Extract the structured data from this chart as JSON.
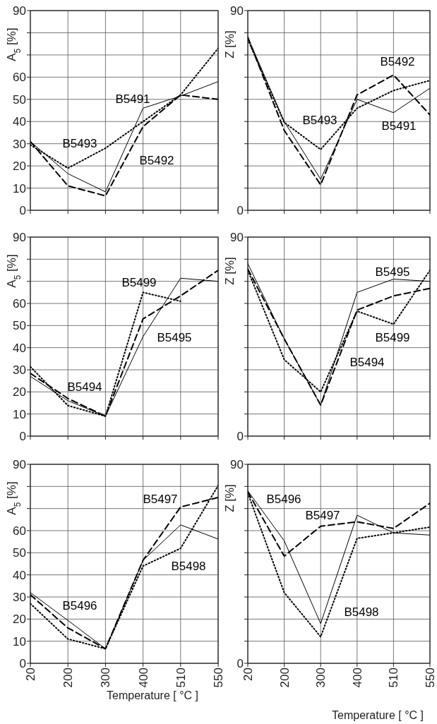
{
  "chart_data": [
    {
      "type": "line",
      "ylabel": "A$_{5}$ [%]",
      "categories": [
        null,
        null,
        null,
        null,
        null,
        null
      ],
      "ylim": [
        0,
        90
      ],
      "yticks": [
        0,
        10,
        20,
        30,
        40,
        50,
        60,
        {
          "value": 70,
          "label": null
        },
        {
          "value": 80,
          "label": null
        },
        90
      ],
      "grid": true,
      "tick_labels": "y",
      "marker": "none",
      "series": [
        {
          "name": "B5491",
          "color": "#000000",
          "line_style": "solid",
          "values": [
            31,
            16.5,
            8.3,
            46,
            51.5,
            58
          ]
        },
        {
          "name": "B5492",
          "color": "#000000",
          "line_style": "dashed",
          "values": [
            31,
            11,
            6.5,
            37.7,
            52,
            50
          ]
        },
        {
          "name": "B5493",
          "color": "#000000",
          "line_style": "dotted",
          "values": [
            29.5,
            19,
            28,
            40,
            52,
            73
          ]
        }
      ]
    },
    {
      "type": "line",
      "ylabel": "Z [%]",
      "categories": [
        null,
        null,
        null,
        null,
        null,
        null
      ],
      "ylim": [
        0,
        90
      ],
      "yticks": [
        0,
        {
          "value": 10,
          "label": null
        },
        {
          "value": 20,
          "label": null
        },
        {
          "value": 30,
          "label": null
        },
        {
          "value": 40,
          "label": null
        },
        {
          "value": 50,
          "label": null
        },
        {
          "value": 60,
          "label": null
        },
        {
          "value": 70,
          "label": null
        },
        {
          "value": 80,
          "label": null
        },
        90
      ],
      "grid": true,
      "tick_labels": "y",
      "marker": "none",
      "series": [
        {
          "name": "B5491",
          "color": "#000000",
          "line_style": "solid",
          "values": [
            78,
            40,
            14,
            50,
            44,
            55
          ]
        },
        {
          "name": "B5492",
          "color": "#000000",
          "line_style": "dashed",
          "values": [
            78,
            36,
            11.5,
            52,
            61,
            43
          ]
        },
        {
          "name": "B5493",
          "color": "#000000",
          "line_style": "dotted",
          "values": [
            77,
            39.6,
            27.4,
            46,
            54,
            58.5
          ]
        }
      ]
    },
    {
      "type": "line",
      "ylabel": "A$_{5}$ [%]",
      "categories": [
        null,
        null,
        null,
        null,
        null,
        null
      ],
      "ylim": [
        0,
        90
      ],
      "yticks": [
        0,
        10,
        20,
        30,
        40,
        50,
        60,
        {
          "value": 70,
          "label": null
        },
        {
          "value": 80,
          "label": null
        },
        90
      ],
      "grid": true,
      "tick_labels": "y",
      "marker": "none",
      "series": [
        {
          "name": "B5495",
          "color": "#000000",
          "line_style": "solid",
          "values": [
            27,
            16,
            9,
            45,
            71.4,
            70
          ]
        },
        {
          "name": "B5494",
          "color": "#000000",
          "line_style": "dashed",
          "values": [
            28.4,
            17,
            9,
            53,
            63.4,
            75
          ]
        },
        {
          "name": "B5499",
          "color": "#000000",
          "line_style": "dotted",
          "values": [
            31.4,
            13.8,
            9,
            65,
            61,
            null
          ]
        }
      ]
    },
    {
      "type": "line",
      "ylabel": "Z [%]",
      "categories": [
        null,
        null,
        null,
        null,
        null,
        null
      ],
      "ylim": [
        0,
        90
      ],
      "yticks": [
        0,
        {
          "value": 10,
          "label": null
        },
        {
          "value": 20,
          "label": null
        },
        {
          "value": 30,
          "label": null
        },
        {
          "value": 40,
          "label": null
        },
        {
          "value": 50,
          "label": null
        },
        {
          "value": 60,
          "label": null
        },
        {
          "value": 70,
          "label": null
        },
        {
          "value": 80,
          "label": null
        },
        90
      ],
      "grid": true,
      "tick_labels": "y",
      "marker": "none",
      "series": [
        {
          "name": "B5495",
          "color": "#000000",
          "line_style": "solid",
          "values": [
            78,
            44,
            14,
            65,
            71,
            70
          ]
        },
        {
          "name": "B5494",
          "color": "#000000",
          "line_style": "dashed",
          "values": [
            75.6,
            44,
            14,
            57,
            63.4,
            66.8
          ]
        },
        {
          "name": "B5499",
          "color": "#000000",
          "line_style": "dotted",
          "values": [
            75,
            34.6,
            20,
            56.5,
            50.6,
            75
          ]
        }
      ]
    },
    {
      "type": "line",
      "ylabel": "A$_{5}$ [%]",
      "xlabel": "Temperature [ °C ]",
      "categories": [
        "20",
        "200",
        "300",
        "400",
        "510",
        "550"
      ],
      "ylim": [
        0,
        90
      ],
      "yticks": [
        0,
        10,
        20,
        30,
        40,
        50,
        60,
        {
          "value": 70,
          "label": null
        },
        {
          "value": 80,
          "label": null
        },
        90
      ],
      "grid": true,
      "marker": "none",
      "series": [
        {
          "name": "B5496",
          "color": "#000000",
          "line_style": "solid",
          "values": [
            32,
            19.4,
            6.6,
            46.6,
            62.6,
            56.2
          ]
        },
        {
          "name": "B5497",
          "color": "#000000",
          "line_style": "dashed",
          "values": [
            31,
            16,
            6.6,
            46.6,
            70.7,
            75
          ]
        },
        {
          "name": "B5498",
          "color": "#000000",
          "line_style": "dotted",
          "values": [
            27,
            11,
            6.6,
            44,
            52,
            80.4
          ]
        }
      ]
    },
    {
      "type": "line",
      "ylabel": "Z [%]",
      "xlabel": "Temperature [ °C ]",
      "categories": [
        "20",
        "200",
        "300",
        "400",
        "510",
        "550"
      ],
      "ylim": [
        0,
        90
      ],
      "yticks": [
        0,
        {
          "value": 10,
          "label": null
        },
        {
          "value": 20,
          "label": null
        },
        {
          "value": 30,
          "label": null
        },
        {
          "value": 40,
          "label": null
        },
        {
          "value": 50,
          "label": null
        },
        {
          "value": 60,
          "label": null
        },
        {
          "value": 70,
          "label": null
        },
        {
          "value": 80,
          "label": null
        },
        90
      ],
      "grid": true,
      "marker": "none",
      "series": [
        {
          "name": "B5496",
          "color": "#000000",
          "line_style": "solid",
          "values": [
            78,
            55.4,
            18,
            67,
            59,
            58
          ]
        },
        {
          "name": "B5497",
          "color": "#000000",
          "line_style": "dashed",
          "values": [
            77.5,
            48.5,
            62,
            64,
            61,
            72.4
          ]
        },
        {
          "name": "B5498",
          "color": "#000000",
          "line_style": "dotted",
          "values": [
            77,
            32,
            12,
            56.5,
            59,
            61.6
          ]
        }
      ]
    }
  ]
}
